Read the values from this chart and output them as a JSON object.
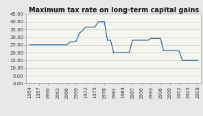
{
  "title": "Maximum tax rate on long-term capital gains",
  "years": [
    1954,
    1955,
    1956,
    1957,
    1958,
    1959,
    1960,
    1961,
    1962,
    1963,
    1964,
    1965,
    1966,
    1967,
    1968,
    1969,
    1970,
    1971,
    1972,
    1973,
    1974,
    1975,
    1976,
    1977,
    1978,
    1979,
    1980,
    1981,
    1982,
    1983,
    1984,
    1985,
    1986,
    1987,
    1988,
    1989,
    1990,
    1991,
    1992,
    1993,
    1994,
    1995,
    1996,
    1997,
    1998,
    1999,
    2000,
    2001,
    2002,
    2003,
    2004,
    2005,
    2006,
    2007,
    2008
  ],
  "rates": [
    25.0,
    25.0,
    25.0,
    25.0,
    25.0,
    25.0,
    25.0,
    25.0,
    25.0,
    25.0,
    25.0,
    25.0,
    25.0,
    26.9,
    26.9,
    27.5,
    32.5,
    34.25,
    36.5,
    36.5,
    36.5,
    36.5,
    39.875,
    39.875,
    40.0,
    28.0,
    28.0,
    20.0,
    20.0,
    20.0,
    20.0,
    20.0,
    20.0,
    28.0,
    28.0,
    28.0,
    28.0,
    28.0,
    28.0,
    29.19,
    29.19,
    29.19,
    29.19,
    21.19,
    21.19,
    21.19,
    21.19,
    21.19,
    21.0,
    15.0,
    15.0,
    15.0,
    15.0,
    15.0,
    15.0
  ],
  "xlim": [
    1953,
    2009
  ],
  "ylim": [
    0.0,
    45.0
  ],
  "yticks": [
    0.0,
    5.0,
    10.0,
    15.0,
    20.0,
    25.0,
    30.0,
    35.0,
    40.0,
    45.0
  ],
  "xticks": [
    1954,
    1957,
    1960,
    1963,
    1966,
    1969,
    1972,
    1975,
    1978,
    1981,
    1984,
    1987,
    1990,
    1993,
    1996,
    1999,
    2002,
    2005,
    2008
  ],
  "line_color": "#2a6496",
  "bg_color": "#e8e8e8",
  "plot_bg_color": "#f5f5f0",
  "grid_color": "#c8c8c8",
  "title_fontsize": 7.0,
  "tick_fontsize": 5.0
}
